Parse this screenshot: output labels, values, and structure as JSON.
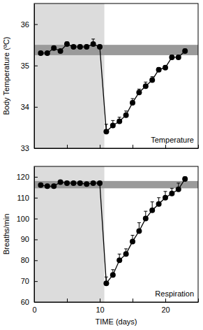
{
  "chart_data": [
    {
      "type": "line",
      "y_label": "Body Temperature (ºC)",
      "annotation": "Temperature",
      "xlim": [
        0,
        25
      ],
      "xticks": [
        0,
        5,
        10,
        15,
        20,
        25
      ],
      "ylim": [
        33,
        36.5
      ],
      "yticks": [
        33,
        34,
        35,
        36
      ],
      "tick_labels": "y",
      "shaded_region": [
        0,
        10.7
      ],
      "reference_band": [
        35.25,
        35.5
      ],
      "series": [
        {
          "name": "Temperature",
          "color": "#000000",
          "marker": "circle",
          "line_style": "solid",
          "x": [
            1,
            2,
            3,
            4,
            5,
            6,
            7,
            8,
            9,
            10,
            11,
            12,
            13,
            14,
            15,
            16,
            17,
            18,
            19,
            20,
            21,
            22,
            23
          ],
          "values": [
            35.3,
            35.3,
            35.42,
            35.35,
            35.52,
            35.45,
            35.45,
            35.45,
            35.52,
            35.45,
            33.4,
            33.55,
            33.65,
            33.8,
            34.1,
            34.35,
            34.5,
            34.65,
            34.9,
            34.95,
            35.2,
            35.2,
            35.35
          ],
          "errors": [
            0.03,
            0.03,
            0.05,
            0.04,
            0.05,
            0.04,
            0.05,
            0.05,
            0.12,
            0.05,
            0.18,
            0.12,
            0.1,
            0.1,
            0.1,
            0.08,
            0.1,
            0.08,
            0.05,
            0.05,
            0.05,
            0.05,
            0.05
          ]
        }
      ]
    },
    {
      "type": "line",
      "x_label": "TIME (days)",
      "y_label": "Breaths/min",
      "annotation": "Respiration",
      "xlim": [
        0,
        25
      ],
      "xticks": [
        0,
        {
          "value": 5,
          "label": ""
        },
        10,
        {
          "value": 15,
          "label": ""
        },
        20,
        {
          "value": 25,
          "label": ""
        }
      ],
      "ylim": [
        60,
        125
      ],
      "yticks": [
        60,
        70,
        80,
        90,
        100,
        110,
        120
      ],
      "shaded_region": [
        0,
        10.7
      ],
      "reference_band": [
        114.5,
        118
      ],
      "series": [
        {
          "name": "Respiration",
          "color": "#000000",
          "marker": "circle",
          "line_style": "solid",
          "x": [
            1,
            2,
            3,
            4,
            5,
            6,
            7,
            8,
            9,
            10,
            11,
            12,
            13,
            14,
            15,
            16,
            17,
            18,
            19,
            20,
            21,
            22,
            23
          ],
          "values": [
            116,
            115.5,
            115.5,
            117.5,
            117,
            117,
            117,
            116.5,
            117,
            117,
            69,
            73,
            80,
            83,
            89,
            94,
            100,
            104,
            107,
            110,
            112,
            114,
            119
          ],
          "errors": [
            0.8,
            0.8,
            0.8,
            0.8,
            0.8,
            0.8,
            0.8,
            0.8,
            0.8,
            0.8,
            3,
            2.5,
            3,
            2.5,
            3,
            4,
            3.5,
            4,
            3,
            3,
            2.5,
            3,
            1
          ]
        }
      ]
    }
  ]
}
